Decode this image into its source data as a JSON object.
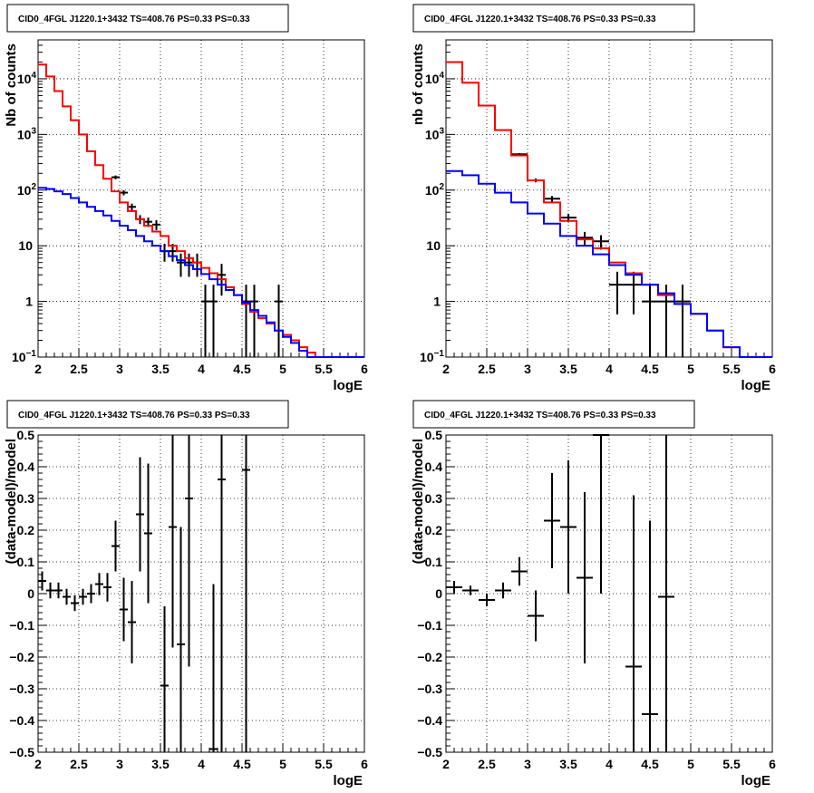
{
  "chart_data": [
    {
      "type": "histogram",
      "title": "CID0_4FGL J1220.1+3432 TS=408.76 PS=0.33 PS=0.33",
      "xlabel": "logE",
      "ylabel": "Nb of counts",
      "xlim": [
        2,
        6
      ],
      "ylim": [
        0.1,
        50000
      ],
      "yscale": "log",
      "grid": true,
      "x_ticks": [
        "2",
        "2.5",
        "3",
        "3.5",
        "4",
        "4.5",
        "5",
        "5.5",
        "6"
      ],
      "y_ticks": [
        {
          "value": 0.1,
          "label": "10",
          "exp": "−1"
        },
        {
          "value": 1,
          "label": "1",
          "exp": ""
        },
        {
          "value": 10,
          "label": "10",
          "exp": ""
        },
        {
          "value": 100,
          "label": "10",
          "exp": "2"
        },
        {
          "value": 1000,
          "label": "10",
          "exp": "3"
        },
        {
          "value": 10000,
          "label": "10",
          "exp": "4"
        }
      ],
      "bin_edges": [
        2.0,
        2.1,
        2.2,
        2.3,
        2.4,
        2.5,
        2.6,
        2.7,
        2.8,
        2.9,
        3.0,
        3.1,
        3.2,
        3.3,
        3.4,
        3.5,
        3.6,
        3.7,
        3.8,
        3.9,
        4.0,
        4.1,
        4.2,
        4.3,
        4.4,
        4.5,
        4.6,
        4.7,
        4.8,
        4.9,
        5.0,
        5.1,
        5.2,
        5.3,
        5.4,
        5.5,
        5.6,
        5.7,
        5.8,
        5.9,
        6.0
      ],
      "series": [
        {
          "color": "#000000",
          "kind": "points",
          "points": [
            {
              "x": 2.95,
              "y": 170
            },
            {
              "x": 3.05,
              "y": 90
            },
            {
              "x": 3.15,
              "y": 50
            },
            {
              "x": 3.25,
              "y": 30
            },
            {
              "x": 3.35,
              "y": 27
            },
            {
              "x": 3.45,
              "y": 24
            },
            {
              "x": 3.55,
              "y": 8
            },
            {
              "x": 3.65,
              "y": 8
            },
            {
              "x": 3.75,
              "y": 5
            },
            {
              "x": 3.85,
              "y": 5
            },
            {
              "x": 3.95,
              "y": 5
            },
            {
              "x": 4.05,
              "y": 1
            },
            {
              "x": 4.15,
              "y": 1
            },
            {
              "x": 4.25,
              "y": 3
            },
            {
              "x": 4.55,
              "y": 1
            },
            {
              "x": 4.65,
              "y": 1
            },
            {
              "x": 4.95,
              "y": 1
            }
          ]
        },
        {
          "color": "#ff0000",
          "kind": "step",
          "values": [
            18000,
            11000,
            6000,
            3200,
            1800,
            1000,
            500,
            280,
            160,
            95,
            60,
            42,
            30,
            23,
            18,
            15,
            10,
            8,
            6,
            5,
            4,
            3.2,
            2.5,
            1.8,
            1.3,
            0.9,
            0.65,
            0.5,
            0.4,
            0.3,
            0.25,
            0.2,
            0.15,
            0.12,
            0.1,
            0.1,
            0.1,
            0.1,
            0.1,
            0.1
          ]
        },
        {
          "color": "#0000ff",
          "kind": "step",
          "values": [
            110,
            105,
            95,
            85,
            72,
            60,
            50,
            42,
            35,
            28,
            23,
            19,
            15,
            12,
            10,
            8,
            6.5,
            5.5,
            4.5,
            3.8,
            3.1,
            2.5,
            2.0,
            1.6,
            1.3,
            0.95,
            0.7,
            0.55,
            0.42,
            0.3,
            0.23,
            0.18,
            0.13,
            0.1,
            0.1,
            0.1,
            0.1,
            0.1,
            0.1,
            0.1
          ]
        }
      ]
    },
    {
      "type": "histogram",
      "title": "CID0_4FGL J1220.1+3432 TS=408.76 PS=0.33 PS=0.33",
      "xlabel": "logE",
      "ylabel": "nb of counts",
      "xlim": [
        2,
        6
      ],
      "ylim": [
        0.1,
        50000
      ],
      "yscale": "log",
      "grid": true,
      "x_ticks": [
        "2",
        "2.5",
        "3",
        "3.5",
        "4",
        "4.5",
        "5",
        "5.5",
        "6"
      ],
      "y_ticks": [
        {
          "value": 0.1,
          "label": "10",
          "exp": "−1"
        },
        {
          "value": 1,
          "label": "1",
          "exp": ""
        },
        {
          "value": 10,
          "label": "10",
          "exp": ""
        },
        {
          "value": 100,
          "label": "10",
          "exp": "2"
        },
        {
          "value": 1000,
          "label": "10",
          "exp": "3"
        },
        {
          "value": 10000,
          "label": "10",
          "exp": "4"
        }
      ],
      "bin_edges": [
        2.0,
        2.2,
        2.4,
        2.6,
        2.8,
        3.0,
        3.2,
        3.4,
        3.6,
        3.8,
        4.0,
        4.2,
        4.4,
        4.6,
        4.8,
        5.0,
        5.2,
        5.4,
        5.6,
        5.8,
        6.0
      ],
      "series": [
        {
          "color": "#000000",
          "kind": "points",
          "points": [
            {
              "x": 2.9,
              "y": 440
            },
            {
              "x": 3.1,
              "y": 150
            },
            {
              "x": 3.3,
              "y": 70
            },
            {
              "x": 3.5,
              "y": 32
            },
            {
              "x": 3.7,
              "y": 14
            },
            {
              "x": 3.9,
              "y": 12
            },
            {
              "x": 4.1,
              "y": 2
            },
            {
              "x": 4.3,
              "y": 2
            },
            {
              "x": 4.5,
              "y": 1
            },
            {
              "x": 4.7,
              "y": 1
            },
            {
              "x": 4.9,
              "y": 1
            }
          ]
        },
        {
          "color": "#ff0000",
          "kind": "step",
          "values": [
            20000,
            8500,
            3300,
            1200,
            420,
            150,
            60,
            28,
            13,
            9,
            5,
            3.2,
            2.0,
            1.3,
            0.9,
            0.6,
            0.3,
            0.15,
            0.1,
            0.1
          ]
        },
        {
          "color": "#0000ff",
          "kind": "step",
          "values": [
            220,
            185,
            130,
            90,
            60,
            38,
            25,
            15,
            10,
            7,
            4.5,
            3.0,
            2.0,
            1.4,
            0.9,
            0.6,
            0.3,
            0.15,
            0.1,
            0.1
          ]
        }
      ]
    },
    {
      "type": "scatter",
      "title": "CID0_4FGL J1220.1+3432 TS=408.76 PS=0.33 PS=0.33",
      "xlabel": "logE",
      "ylabel": "(data-model)/model",
      "xlim": [
        2,
        6
      ],
      "ylim": [
        -0.5,
        0.5
      ],
      "yscale": "linear",
      "grid": true,
      "x_ticks": [
        "2",
        "2.5",
        "3",
        "3.5",
        "4",
        "4.5",
        "5",
        "5.5",
        "6"
      ],
      "y_ticks": [
        "−0.5",
        "−0.4",
        "−0.3",
        "−0.2",
        "−0.1",
        "0",
        "0.1",
        "0.2",
        "0.3",
        "0.4",
        "0.5"
      ],
      "series": [
        {
          "color": "#000000",
          "kind": "errorbars",
          "x_halfwidth": 0.05,
          "points": [
            {
              "x": 2.05,
              "y": 0.04,
              "err": 0.03
            },
            {
              "x": 2.15,
              "y": 0.01,
              "err": 0.025
            },
            {
              "x": 2.25,
              "y": 0.01,
              "err": 0.025
            },
            {
              "x": 2.35,
              "y": -0.01,
              "err": 0.025
            },
            {
              "x": 2.45,
              "y": -0.03,
              "err": 0.025
            },
            {
              "x": 2.55,
              "y": -0.01,
              "err": 0.025
            },
            {
              "x": 2.65,
              "y": 0.0,
              "err": 0.03
            },
            {
              "x": 2.75,
              "y": 0.03,
              "err": 0.035
            },
            {
              "x": 2.85,
              "y": 0.02,
              "err": 0.045
            },
            {
              "x": 2.95,
              "y": 0.15,
              "err": 0.08
            },
            {
              "x": 3.05,
              "y": -0.05,
              "err": 0.1
            },
            {
              "x": 3.15,
              "y": -0.09,
              "err": 0.13
            },
            {
              "x": 3.25,
              "y": 0.25,
              "err": 0.18
            },
            {
              "x": 3.35,
              "y": 0.19,
              "err": 0.22
            },
            {
              "x": 3.55,
              "y": -0.29,
              "err": 0.25
            },
            {
              "x": 3.65,
              "y": 0.21,
              "err": 0.38
            },
            {
              "x": 3.75,
              "y": -0.16,
              "err": 0.37
            },
            {
              "x": 3.85,
              "y": 0.3,
              "err": 0.53
            },
            {
              "x": 4.15,
              "y": -0.49,
              "err": 0.52
            },
            {
              "x": 4.25,
              "y": 0.36,
              "err": 0.9
            },
            {
              "x": 4.55,
              "y": 0.39,
              "err": 1.3
            }
          ]
        }
      ]
    },
    {
      "type": "scatter",
      "title": "CID0_4FGL J1220.1+3432 TS=408.76 PS=0.33 PS=0.33",
      "xlabel": "logE",
      "ylabel": "(data-model)/model",
      "xlim": [
        2,
        6
      ],
      "ylim": [
        -0.5,
        0.5
      ],
      "yscale": "linear",
      "grid": true,
      "x_ticks": [
        "2",
        "2.5",
        "3",
        "3.5",
        "4",
        "4.5",
        "5",
        "5.5",
        "6"
      ],
      "y_ticks": [
        "−0.5",
        "−0.4",
        "−0.3",
        "−0.2",
        "−0.1",
        "0",
        "0.1",
        "0.2",
        "0.3",
        "0.4",
        "0.5"
      ],
      "series": [
        {
          "color": "#000000",
          "kind": "errorbars",
          "x_halfwidth": 0.1,
          "points": [
            {
              "x": 2.1,
              "y": 0.02,
              "err": 0.02
            },
            {
              "x": 2.3,
              "y": 0.01,
              "err": 0.015
            },
            {
              "x": 2.5,
              "y": -0.02,
              "err": 0.02
            },
            {
              "x": 2.7,
              "y": 0.01,
              "err": 0.025
            },
            {
              "x": 2.9,
              "y": 0.07,
              "err": 0.045
            },
            {
              "x": 3.1,
              "y": -0.07,
              "err": 0.08
            },
            {
              "x": 3.3,
              "y": 0.23,
              "err": 0.15
            },
            {
              "x": 3.5,
              "y": 0.21,
              "err": 0.21
            },
            {
              "x": 3.7,
              "y": 0.05,
              "err": 0.27
            },
            {
              "x": 3.9,
              "y": 0.5,
              "err": 0.5
            },
            {
              "x": 4.3,
              "y": -0.23,
              "err": 0.54
            },
            {
              "x": 4.5,
              "y": -0.38,
              "err": 0.61
            },
            {
              "x": 4.7,
              "y": -0.01,
              "err": 1.0
            }
          ]
        }
      ]
    }
  ]
}
